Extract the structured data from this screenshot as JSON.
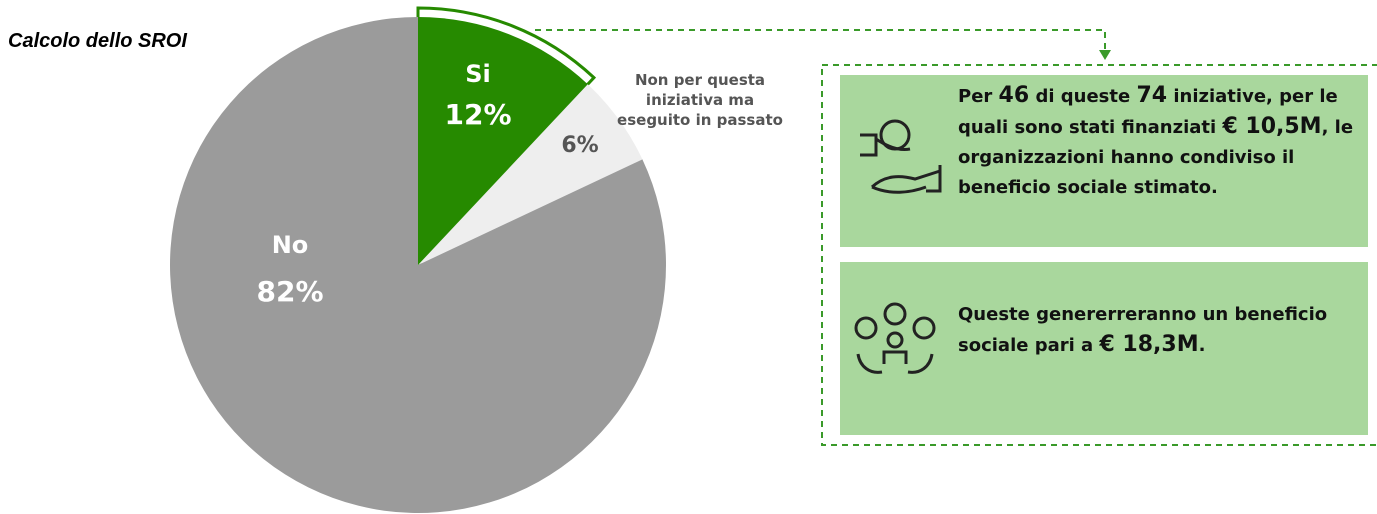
{
  "chart_data": {
    "type": "pie",
    "title": "Calcolo dello SROI",
    "categories": [
      "Si",
      "Non per questa iniziativa ma eseguito in passato",
      "No"
    ],
    "values": [
      12,
      6,
      82
    ],
    "value_labels": [
      "12%",
      "6%",
      "82%"
    ],
    "colors": [
      "#268a00",
      "#eeeeee",
      "#9b9b9b"
    ]
  },
  "panels": [
    {
      "parts": [
        "Per ",
        "46",
        " di queste ",
        "74",
        " iniziative, per le quali sono stati finanziati ",
        "€ 10,5M",
        ", le organizzazioni hanno condiviso il beneficio sociale stimato."
      ]
    },
    {
      "parts": [
        "Queste genererreranno un beneficio sociale pari a ",
        "€ 18,3M",
        "."
      ]
    }
  ]
}
